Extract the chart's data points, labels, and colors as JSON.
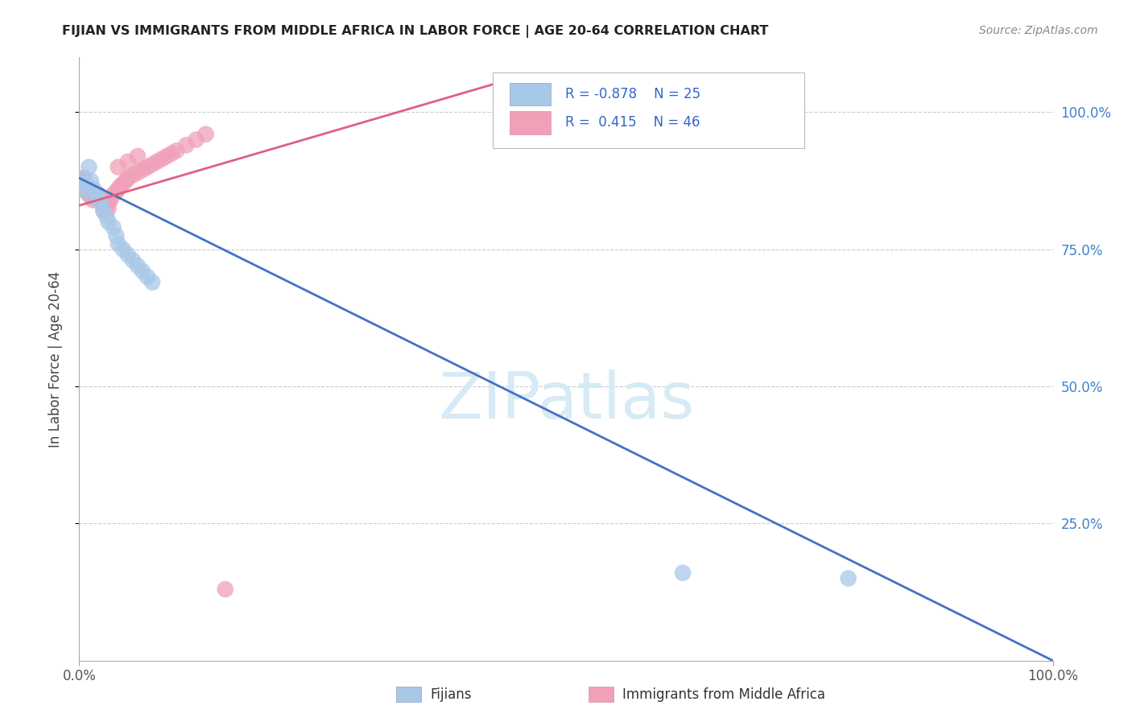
{
  "title": "FIJIAN VS IMMIGRANTS FROM MIDDLE AFRICA IN LABOR FORCE | AGE 20-64 CORRELATION CHART",
  "source": "Source: ZipAtlas.com",
  "ylabel": "In Labor Force | Age 20-64",
  "watermark": "ZIPatlas",
  "legend": {
    "blue_label": "Fijians",
    "pink_label": "Immigrants from Middle Africa",
    "blue_R": -0.878,
    "blue_N": 25,
    "pink_R": 0.415,
    "pink_N": 46
  },
  "blue_color": "#A8C8E8",
  "pink_color": "#F0A0B8",
  "blue_line_color": "#4472C4",
  "pink_line_color": "#E06080",
  "ytick_labels": [
    "100.0%",
    "75.0%",
    "50.0%",
    "25.0%"
  ],
  "ytick_values": [
    1.0,
    0.75,
    0.5,
    0.25
  ],
  "xlim": [
    0.0,
    1.0
  ],
  "ylim": [
    0.0,
    1.1
  ],
  "blue_scatter_x": [
    0.003,
    0.005,
    0.007,
    0.008,
    0.01,
    0.012,
    0.015,
    0.018,
    0.02,
    0.022,
    0.025,
    0.028,
    0.03,
    0.035,
    0.038,
    0.04,
    0.045,
    0.05,
    0.055,
    0.06,
    0.065,
    0.07,
    0.075,
    0.62,
    0.79
  ],
  "blue_scatter_y": [
    0.88,
    0.87,
    0.865,
    0.855,
    0.9,
    0.875,
    0.86,
    0.85,
    0.84,
    0.835,
    0.82,
    0.81,
    0.8,
    0.79,
    0.775,
    0.76,
    0.75,
    0.74,
    0.73,
    0.72,
    0.71,
    0.7,
    0.69,
    0.16,
    0.15
  ],
  "pink_scatter_x": [
    0.001,
    0.002,
    0.003,
    0.004,
    0.005,
    0.006,
    0.007,
    0.008,
    0.009,
    0.01,
    0.012,
    0.014,
    0.015,
    0.018,
    0.02,
    0.022,
    0.025,
    0.028,
    0.03,
    0.032,
    0.035,
    0.038,
    0.04,
    0.042,
    0.045,
    0.048,
    0.05,
    0.055,
    0.06,
    0.065,
    0.07,
    0.075,
    0.08,
    0.085,
    0.09,
    0.095,
    0.1,
    0.11,
    0.12,
    0.13,
    0.025,
    0.03,
    0.15,
    0.06,
    0.05,
    0.04
  ],
  "pink_scatter_y": [
    0.87,
    0.865,
    0.875,
    0.86,
    0.88,
    0.87,
    0.855,
    0.865,
    0.858,
    0.85,
    0.845,
    0.84,
    0.855,
    0.845,
    0.85,
    0.84,
    0.835,
    0.83,
    0.835,
    0.84,
    0.85,
    0.855,
    0.86,
    0.865,
    0.87,
    0.875,
    0.88,
    0.885,
    0.89,
    0.895,
    0.9,
    0.905,
    0.91,
    0.915,
    0.92,
    0.925,
    0.93,
    0.94,
    0.95,
    0.96,
    0.82,
    0.825,
    0.13,
    0.92,
    0.91,
    0.9
  ],
  "blue_line_x": [
    0.0,
    1.0
  ],
  "blue_line_y_intercept": 0.88,
  "blue_line_slope": -0.88,
  "pink_line_x_start": 0.0,
  "pink_line_x_end": 0.46,
  "pink_line_y_intercept": 0.83,
  "pink_line_slope": 0.52
}
